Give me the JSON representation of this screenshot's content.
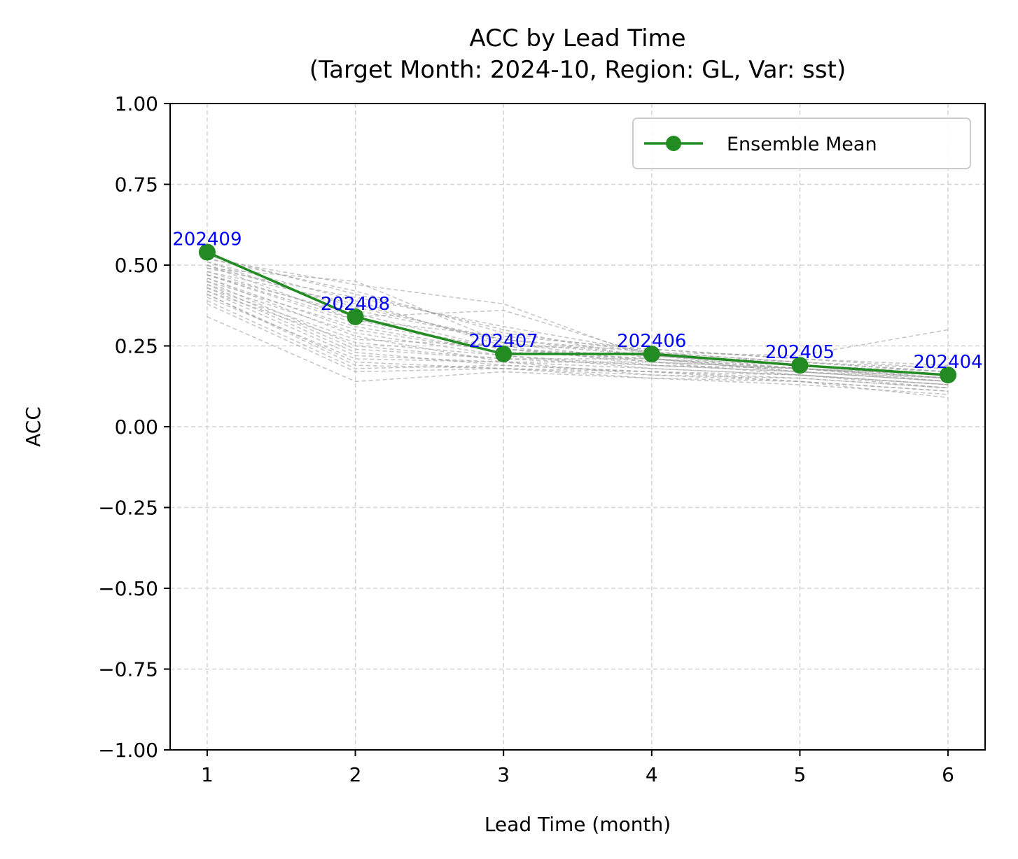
{
  "chart_data": {
    "type": "line",
    "title": "ACC by Lead Time",
    "subtitle": "(Target Month: 2024-10, Region: GL, Var: sst)",
    "xlabel": "Lead Time (month)",
    "ylabel": "ACC",
    "xlim": [
      0.75,
      6.25
    ],
    "ylim": [
      -1.0,
      1.0
    ],
    "x_ticks": [
      1,
      2,
      3,
      4,
      5,
      6
    ],
    "y_ticks": [
      -1.0,
      -0.75,
      -0.5,
      -0.25,
      0.0,
      0.25,
      0.5,
      0.75,
      1.0
    ],
    "x_tick_labels": [
      "1",
      "2",
      "3",
      "4",
      "5",
      "6"
    ],
    "y_tick_labels": [
      "−1.00",
      "−0.75",
      "−0.50",
      "−0.25",
      "0.00",
      "0.25",
      "0.50",
      "0.75",
      "1.00"
    ],
    "grid": true,
    "legend_position": "top-right",
    "x": [
      1,
      2,
      3,
      4,
      5,
      6
    ],
    "series": [
      {
        "name": "Ensemble Mean",
        "color": "#228b22",
        "marker": "circle",
        "values": [
          0.54,
          0.34,
          0.225,
          0.225,
          0.19,
          0.16
        ]
      }
    ],
    "point_labels": [
      "202409",
      "202408",
      "202407",
      "202406",
      "202405",
      "202404"
    ],
    "point_label_color": "#0000ff",
    "member_color": "#999999",
    "member_style": "dashed",
    "members": [
      [
        0.53,
        0.41,
        0.3,
        0.21,
        0.17,
        0.14
      ],
      [
        0.47,
        0.32,
        0.24,
        0.2,
        0.16,
        0.13
      ],
      [
        0.45,
        0.25,
        0.21,
        0.21,
        0.18,
        0.15
      ],
      [
        0.39,
        0.18,
        0.19,
        0.17,
        0.15,
        0.12
      ],
      [
        0.51,
        0.36,
        0.27,
        0.22,
        0.19,
        0.17
      ],
      [
        0.44,
        0.29,
        0.22,
        0.19,
        0.17,
        0.14
      ],
      [
        0.48,
        0.38,
        0.26,
        0.2,
        0.18,
        0.15
      ],
      [
        0.42,
        0.22,
        0.2,
        0.18,
        0.16,
        0.13
      ],
      [
        0.52,
        0.44,
        0.38,
        0.21,
        0.18,
        0.16
      ],
      [
        0.34,
        0.14,
        0.17,
        0.15,
        0.13,
        0.1
      ],
      [
        0.46,
        0.3,
        0.23,
        0.22,
        0.2,
        0.17
      ],
      [
        0.5,
        0.33,
        0.28,
        0.24,
        0.21,
        0.19
      ],
      [
        0.41,
        0.2,
        0.18,
        0.17,
        0.14,
        0.11
      ],
      [
        0.49,
        0.4,
        0.31,
        0.23,
        0.2,
        0.18
      ],
      [
        0.43,
        0.27,
        0.25,
        0.19,
        0.18,
        0.16
      ],
      [
        0.47,
        0.35,
        0.24,
        0.22,
        0.19,
        0.15
      ],
      [
        0.4,
        0.21,
        0.2,
        0.16,
        0.15,
        0.12
      ],
      [
        0.52,
        0.42,
        0.29,
        0.23,
        0.22,
        0.3
      ],
      [
        0.38,
        0.17,
        0.18,
        0.16,
        0.14,
        0.09
      ],
      [
        0.45,
        0.31,
        0.23,
        0.21,
        0.19,
        0.16
      ],
      [
        0.5,
        0.37,
        0.27,
        0.23,
        0.2,
        0.17
      ],
      [
        0.44,
        0.24,
        0.21,
        0.19,
        0.17,
        0.14
      ],
      [
        0.48,
        0.34,
        0.36,
        0.22,
        0.18,
        0.15
      ],
      [
        0.42,
        0.26,
        0.22,
        0.18,
        0.16,
        0.13
      ],
      [
        0.46,
        0.28,
        0.2,
        0.2,
        0.18,
        0.14
      ],
      [
        0.51,
        0.39,
        0.25,
        0.24,
        0.21,
        0.18
      ],
      [
        0.43,
        0.23,
        0.19,
        0.17,
        0.16,
        0.12
      ],
      [
        0.49,
        0.45,
        0.26,
        0.22,
        0.19,
        0.16
      ],
      [
        0.41,
        0.19,
        0.18,
        0.15,
        0.14,
        0.11
      ],
      [
        0.47,
        0.33,
        0.24,
        0.21,
        0.17,
        0.15
      ]
    ]
  }
}
